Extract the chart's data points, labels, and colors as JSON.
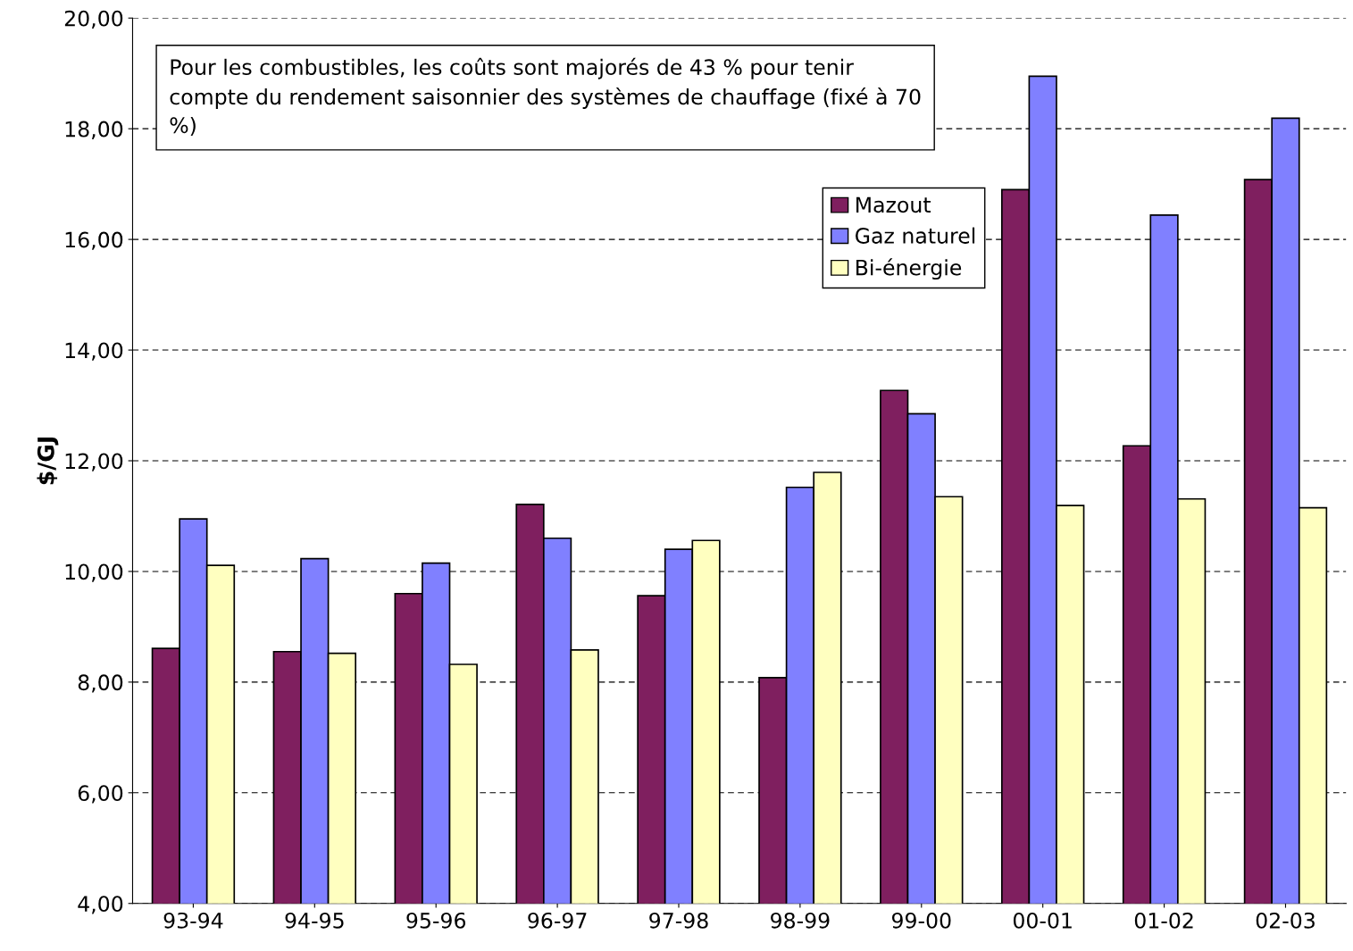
{
  "chart_data": {
    "type": "bar",
    "ylabel": "$/GJ",
    "categories": [
      "93-94",
      "94-95",
      "95-96",
      "96-97",
      "97-98",
      "98-99",
      "99-00",
      "00-01",
      "01-02",
      "02-03"
    ],
    "series": [
      {
        "name": "Mazout",
        "color": "#7f1f5f",
        "values": [
          8.61,
          8.55,
          9.6,
          11.21,
          9.56,
          8.08,
          13.27,
          16.9,
          12.27,
          17.08
        ]
      },
      {
        "name": "Gaz naturel",
        "color": "#8080ff",
        "values": [
          10.95,
          10.23,
          10.15,
          10.6,
          10.4,
          11.52,
          12.85,
          18.95,
          16.44,
          18.19
        ]
      },
      {
        "name": "Bi-énergie",
        "color": "#ffffc0",
        "values": [
          10.11,
          8.52,
          8.32,
          8.58,
          10.56,
          11.79,
          11.35,
          11.19,
          11.31,
          11.15
        ]
      }
    ],
    "ylim": [
      4,
      20
    ],
    "yticks": [
      {
        "value": 4,
        "label": "4,00"
      },
      {
        "value": 6,
        "label": "6,00"
      },
      {
        "value": 8,
        "label": "8,00"
      },
      {
        "value": 10,
        "label": "10,00"
      },
      {
        "value": 12,
        "label": "12,00"
      },
      {
        "value": 14,
        "label": "14,00"
      },
      {
        "value": 16,
        "label": "16,00"
      },
      {
        "value": 18,
        "label": "18,00"
      },
      {
        "value": 20,
        "label": "20,00"
      }
    ],
    "grid": "y",
    "legend": "top",
    "annotations": [
      "Pour les combustibles, les coûts sont majorés de 43 % pour tenir compte du rendement saisonnier des systèmes de chauffage (fixé à 70 %)"
    ]
  }
}
